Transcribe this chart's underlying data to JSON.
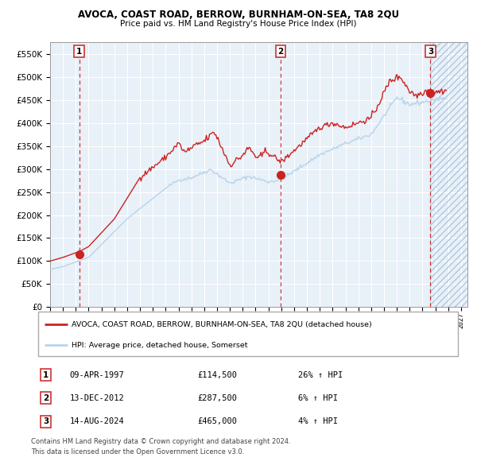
{
  "title": "AVOCA, COAST ROAD, BERROW, BURNHAM-ON-SEA, TA8 2QU",
  "subtitle": "Price paid vs. HM Land Registry's House Price Index (HPI)",
  "legend_line1": "AVOCA, COAST ROAD, BERROW, BURNHAM-ON-SEA, TA8 2QU (detached house)",
  "legend_line2": "HPI: Average price, detached house, Somerset",
  "transactions": [
    {
      "num": 1,
      "date": "09-APR-1997",
      "price": 114500,
      "pct": "26%",
      "dir": "↑",
      "year": 1997.27
    },
    {
      "num": 2,
      "date": "13-DEC-2012",
      "price": 287500,
      "pct": "6%",
      "dir": "↑",
      "year": 2012.95
    },
    {
      "num": 3,
      "date": "14-AUG-2024",
      "price": 465000,
      "pct": "4%",
      "dir": "↑",
      "year": 2024.62
    }
  ],
  "footer_line1": "Contains HM Land Registry data © Crown copyright and database right 2024.",
  "footer_line2": "This data is licensed under the Open Government Licence v3.0.",
  "ylim": [
    0,
    575000
  ],
  "yticks": [
    0,
    50000,
    100000,
    150000,
    200000,
    250000,
    300000,
    350000,
    400000,
    450000,
    500000,
    550000
  ],
  "xmin": 1995.0,
  "xmax": 2027.5,
  "hpi_color": "#b8d4ea",
  "price_color": "#cc2222",
  "plot_bg": "#e8f0f8",
  "grid_color": "#ffffff",
  "dashed_line_color": "#cc3333",
  "marker_color": "#cc2222",
  "badge_edge_color": "#cc3333"
}
